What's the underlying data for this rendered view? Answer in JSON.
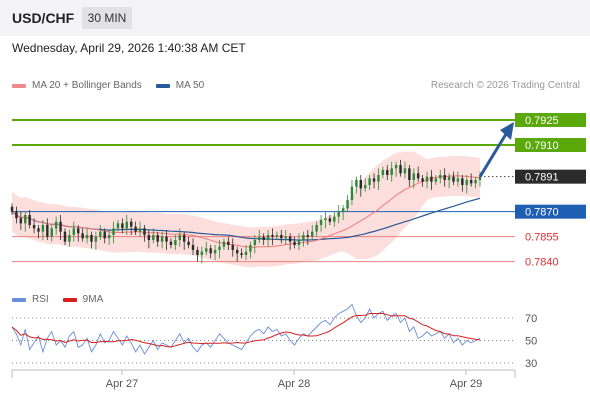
{
  "header": {
    "symbol": "USD/CHF",
    "timeframe": "30 MIN",
    "datetime": "Wednesday, April 29, 2026 1:40:38 AM CET"
  },
  "legend": {
    "ma_bb": "MA 20 + Bollinger Bands",
    "ma50": "MA 50",
    "credit": "Research © 2026 Trading Central",
    "rsi": "RSI",
    "ma9": "9MA"
  },
  "colors": {
    "bb_fill": "#fcd9d6",
    "ma20": "#f07a7a",
    "ma50": "#2a5a9a",
    "resistance": "#5aa80a",
    "pivot": "#1e5fb4",
    "support": "#ee8080",
    "candle_up": "#2a8a3a",
    "candle_down": "#2b2b2b",
    "rsi": "#6a8fd8",
    "rsi_ma": "#d82020",
    "arrow": "#2a5a9a"
  },
  "chart_data": [
    {
      "type": "candlestick",
      "title": "USD/CHF",
      "timeframe": "30 MIN",
      "x_ticks": [
        "Apr 27",
        "Apr 28",
        "Apr 29"
      ],
      "ylim": [
        0.7829,
        0.7937
      ],
      "series": [
        {
          "name": "MA 20 + Bollinger Bands"
        },
        {
          "name": "MA 50"
        }
      ],
      "price_series": [
        0.787,
        0.7866,
        0.7863,
        0.7868,
        0.7862,
        0.786,
        0.7858,
        0.7862,
        0.7855,
        0.786,
        0.7864,
        0.7858,
        0.7852,
        0.7856,
        0.786,
        0.7857,
        0.7854,
        0.7856,
        0.7852,
        0.7855,
        0.7858,
        0.7854,
        0.7856,
        0.786,
        0.7863,
        0.786,
        0.7864,
        0.7861,
        0.7858,
        0.786,
        0.7856,
        0.7853,
        0.7856,
        0.7852,
        0.7855,
        0.7852,
        0.785,
        0.7853,
        0.7856,
        0.7852,
        0.785,
        0.7847,
        0.7844,
        0.7846,
        0.7848,
        0.7845,
        0.7847,
        0.7849,
        0.7852,
        0.785,
        0.7847,
        0.7845,
        0.7844,
        0.7846,
        0.785,
        0.7853,
        0.7855,
        0.7853,
        0.7856,
        0.7855,
        0.7856,
        0.7854,
        0.7855,
        0.7852,
        0.785,
        0.7853,
        0.7856,
        0.7855,
        0.7858,
        0.7862,
        0.7865,
        0.7866,
        0.7864,
        0.7867,
        0.787,
        0.7872,
        0.7877,
        0.7885,
        0.7889,
        0.7884,
        0.7886,
        0.789,
        0.7888,
        0.7892,
        0.7895,
        0.7892,
        0.7896,
        0.7898,
        0.7893,
        0.7896,
        0.7889,
        0.7893,
        0.789,
        0.7888,
        0.7891,
        0.7888,
        0.789,
        0.7892,
        0.7889,
        0.7891,
        0.7888,
        0.789,
        0.7886,
        0.7889,
        0.7887,
        0.7889,
        0.7891
      ],
      "levels": [
        {
          "value": "0.7925",
          "kind": "resistance"
        },
        {
          "value": "0.7910",
          "kind": "resistance"
        },
        {
          "value": "0.7891",
          "kind": "last"
        },
        {
          "value": "0.7870",
          "kind": "pivot"
        },
        {
          "value": "0.7855",
          "kind": "support"
        },
        {
          "value": "0.7840",
          "kind": "support"
        }
      ],
      "arrow": {
        "from": 0.7891,
        "to": 0.7925
      }
    },
    {
      "type": "line",
      "title": "RSI",
      "series": [
        {
          "name": "RSI",
          "values": [
            62,
            56,
            46,
            60,
            42,
            48,
            54,
            40,
            52,
            58,
            46,
            50,
            44,
            54,
            58,
            44,
            46,
            52,
            40,
            46,
            56,
            48,
            50,
            58,
            52,
            46,
            54,
            48,
            40,
            46,
            38,
            44,
            50,
            42,
            48,
            46,
            44,
            50,
            56,
            48,
            52,
            44,
            40,
            46,
            48,
            44,
            50,
            56,
            52,
            48,
            46,
            44,
            42,
            48,
            54,
            58,
            60,
            56,
            62,
            58,
            60,
            54,
            56,
            50,
            46,
            52,
            56,
            54,
            58,
            62,
            66,
            68,
            64,
            70,
            74,
            76,
            78,
            82,
            72,
            66,
            70,
            78,
            70,
            74,
            76,
            68,
            72,
            74,
            66,
            70,
            58,
            62,
            52,
            54,
            58,
            54,
            56,
            58,
            52,
            56,
            48,
            52,
            46,
            50,
            48,
            50,
            52
          ]
        },
        {
          "name": "9MA"
        }
      ],
      "y_ticks": [
        "70",
        "50",
        "30"
      ],
      "ylim": [
        22,
        86
      ]
    }
  ]
}
